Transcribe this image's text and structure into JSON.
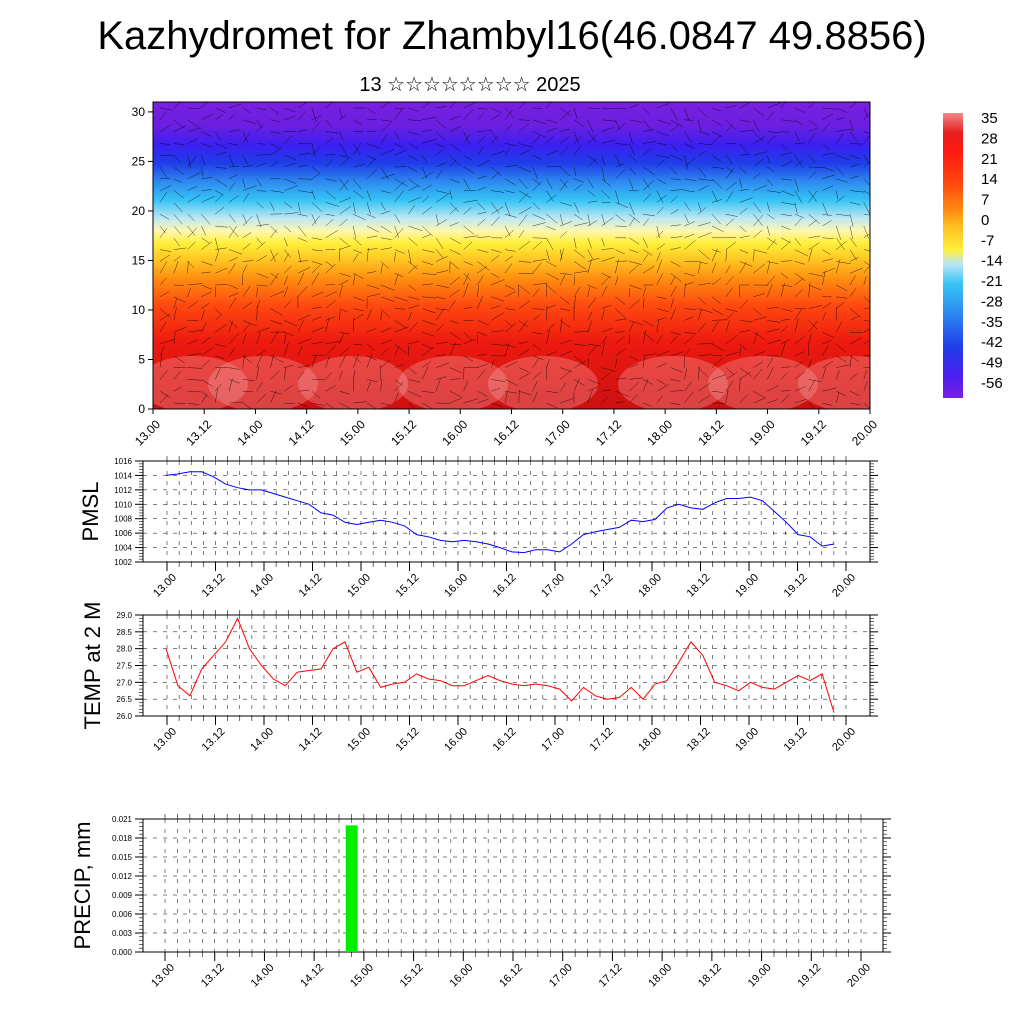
{
  "header": {
    "title": "Kazhydromet for Zhambyl16(46.0847 49.8856)",
    "subtitle": "13 ☆☆☆☆☆☆☆☆ 2025"
  },
  "colors": {
    "pmsl_line": "#0000ff",
    "temp_line": "#ff0000",
    "precip_bar": "#00ee00",
    "colorbar": [
      "#7a1fe0",
      "#4a1ff0",
      "#1f3ee8",
      "#2e8af0",
      "#36c4f5",
      "#b8e6f5",
      "#ffef3a",
      "#ffc020",
      "#ff8a10",
      "#ff4a10",
      "#ff1a10",
      "#e81e1e",
      "#f08a8a"
    ]
  },
  "chart_data": [
    {
      "type": "heatmap",
      "name": "cross-section",
      "x_ticks": [
        "13.00",
        "13.12",
        "14.00",
        "14.12",
        "15.00",
        "15.12",
        "16.00",
        "16.12",
        "17.00",
        "17.12",
        "18.00",
        "18.12",
        "19.00",
        "19.12",
        "20.00"
      ],
      "y_ticks": [
        "0",
        "5",
        "10",
        "15",
        "20",
        "25",
        "30"
      ],
      "ylim": [
        0,
        31
      ],
      "colorbar_labels": [
        "35",
        "28",
        "21",
        "14",
        "7",
        "0",
        "-7",
        "-14",
        "-21",
        "-28",
        "-35",
        "-42",
        "-49",
        "-56"
      ]
    },
    {
      "type": "line",
      "ylabel": "PMSL",
      "x_ticks": [
        "13.00",
        "13.12",
        "14.00",
        "14.12",
        "15.00",
        "15.12",
        "16.00",
        "16.12",
        "17.00",
        "17.12",
        "18.00",
        "18.12",
        "19.00",
        "19.12",
        "20.00"
      ],
      "y_ticks": [
        "1002",
        "1004",
        "1006",
        "1008",
        "1010",
        "1012",
        "1014",
        "1016"
      ],
      "ylim": [
        1002,
        1016
      ],
      "values": [
        1014.0,
        1014.2,
        1014.5,
        1014.5,
        1013.8,
        1012.8,
        1012.3,
        1012.0,
        1012.0,
        1011.5,
        1011.0,
        1010.5,
        1010.0,
        1008.8,
        1008.5,
        1007.5,
        1007.2,
        1007.5,
        1007.8,
        1007.5,
        1007.0,
        1005.8,
        1005.5,
        1005.0,
        1004.8,
        1005.0,
        1004.8,
        1004.5,
        1004.0,
        1003.4,
        1003.3,
        1003.7,
        1003.7,
        1003.4,
        1004.5,
        1005.8,
        1006.2,
        1006.5,
        1006.8,
        1007.8,
        1007.6,
        1007.9,
        1009.5,
        1010.0,
        1009.5,
        1009.3,
        1010.2,
        1010.8,
        1010.8,
        1011.0,
        1010.5,
        1009.0,
        1007.5,
        1005.8,
        1005.5,
        1004.2,
        1004.5
      ]
    },
    {
      "type": "line",
      "ylabel": "TEMP at 2 M",
      "x_ticks": [
        "13.00",
        "13.12",
        "14.00",
        "14.12",
        "15.00",
        "15.12",
        "16.00",
        "16.12",
        "17.00",
        "17.12",
        "18.00",
        "18.12",
        "19.00",
        "19.12",
        "20.00"
      ],
      "y_ticks": [
        "26.0",
        "26.5",
        "27.0",
        "27.5",
        "28.0",
        "28.5",
        "29.0"
      ],
      "ylim": [
        26.0,
        29.0
      ],
      "values": [
        28.0,
        26.9,
        26.6,
        27.4,
        27.8,
        28.2,
        28.9,
        28.0,
        27.5,
        27.1,
        26.9,
        27.3,
        27.35,
        27.4,
        28.0,
        28.2,
        27.3,
        27.45,
        26.85,
        26.95,
        27.0,
        27.25,
        27.1,
        27.05,
        26.9,
        26.9,
        27.05,
        27.2,
        27.05,
        26.95,
        26.9,
        26.95,
        26.9,
        26.8,
        26.45,
        26.85,
        26.6,
        26.5,
        26.55,
        26.85,
        26.5,
        26.95,
        27.05,
        27.6,
        28.2,
        27.8,
        27.0,
        26.9,
        26.75,
        27.0,
        26.85,
        26.8,
        27.0,
        27.2,
        27.05,
        27.25,
        26.1
      ]
    },
    {
      "type": "bar",
      "ylabel": "PRECIP, mm",
      "x_ticks": [
        "13.00",
        "13.12",
        "14.00",
        "14.12",
        "15.00",
        "15.12",
        "16.00",
        "16.12",
        "17.00",
        "17.12",
        "18.00",
        "18.12",
        "19.00",
        "19.12",
        "20.00"
      ],
      "y_ticks": [
        "0.000",
        "0.003",
        "0.006",
        "0.009",
        "0.012",
        "0.015",
        "0.018",
        "0.021"
      ],
      "ylim": [
        0,
        0.021
      ],
      "bars": [
        {
          "x": 15,
          "value": 0.02
        }
      ]
    }
  ]
}
